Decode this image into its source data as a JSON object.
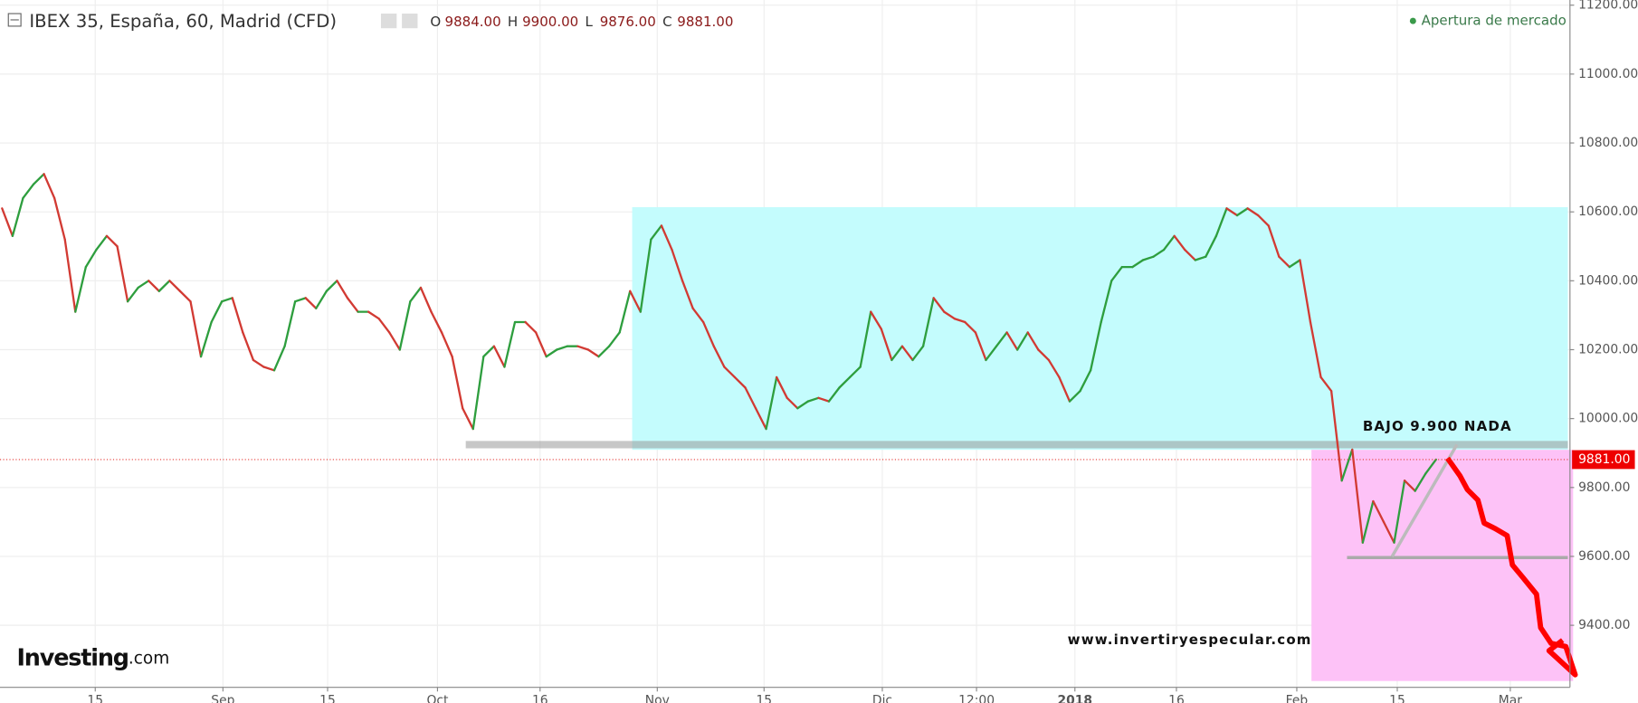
{
  "chart_data": {
    "type": "line",
    "title": "IBEX 35, España, 60, Madrid (CFD)",
    "ohlc": [
      {
        "label": "O",
        "value": "9884.00"
      },
      {
        "label": "H",
        "value": "9900.00"
      },
      {
        "label": "L",
        "value": "9876.00"
      },
      {
        "label": "C",
        "value": "9881.00"
      }
    ],
    "status": "Apertura de mercado",
    "annotations": [
      "BAJO 9.900 NADA",
      "www.invertiryespecular.com"
    ],
    "logo": {
      "main": "Investing",
      "suffix": ".com"
    },
    "last_price": {
      "value": 9881,
      "label": "9881.00"
    },
    "series": [
      {
        "name": "IBEX 35",
        "up_color": "#2e9e3e",
        "down_color": "#d23a33",
        "values": [
          10610,
          10530,
          10640,
          10680,
          10710,
          10640,
          10520,
          10310,
          10440,
          10490,
          10530,
          10500,
          10340,
          10380,
          10400,
          10370,
          10400,
          10370,
          10340,
          10180,
          10280,
          10340,
          10350,
          10250,
          10170,
          10150,
          10140,
          10210,
          10340,
          10350,
          10320,
          10370,
          10400,
          10350,
          10310,
          10310,
          10290,
          10250,
          10200,
          10340,
          10380,
          10310,
          10250,
          10180,
          10030,
          9970,
          10180,
          10210,
          10150,
          10280,
          10280,
          10250,
          10180,
          10200,
          10210,
          10210,
          10200,
          10180,
          10210,
          10250,
          10370,
          10310,
          10520,
          10560,
          10490,
          10400,
          10320,
          10280,
          10210,
          10150,
          10120,
          10090,
          10030,
          9970,
          10120,
          10060,
          10030,
          10050,
          10060,
          10050,
          10090,
          10120,
          10150,
          10310,
          10260,
          10170,
          10210,
          10170,
          10210,
          10350,
          10310,
          10290,
          10280,
          10250,
          10170,
          10210,
          10250,
          10200,
          10250,
          10200,
          10170,
          10120,
          10050,
          10080,
          10140,
          10280,
          10400,
          10440,
          10440,
          10460,
          10470,
          10490,
          10530,
          10490,
          10460,
          10470,
          10530,
          10610,
          10590,
          10610,
          10590,
          10560,
          10470,
          10440,
          10460,
          10280,
          10120,
          10080,
          9820,
          9910,
          9640,
          9760,
          9700,
          9640,
          9820,
          9790,
          9840,
          9881
        ]
      }
    ],
    "xlim": [
      0,
      150
    ],
    "xticks": [
      {
        "value": 9.1,
        "label": "15"
      },
      {
        "value": 21.3,
        "label": "Sep"
      },
      {
        "value": 31.3,
        "label": "15"
      },
      {
        "value": 41.8,
        "label": "Oct"
      },
      {
        "value": 51.6,
        "label": "16"
      },
      {
        "value": 62.8,
        "label": "Nov"
      },
      {
        "value": 73,
        "label": "15"
      },
      {
        "value": 84.3,
        "label": "Dic"
      },
      {
        "value": 93.3,
        "label": "12:00"
      },
      {
        "value": 102.7,
        "label": "2018"
      },
      {
        "value": 112.4,
        "label": "16"
      },
      {
        "value": 123.9,
        "label": "Feb"
      },
      {
        "value": 133.5,
        "label": "15"
      },
      {
        "value": 144.3,
        "label": "Mar"
      }
    ],
    "ylim": [
      9220,
      11215
    ],
    "yticks": [
      {
        "value": 9400,
        "label": "9400.00"
      },
      {
        "value": 9600,
        "label": "9600.00"
      },
      {
        "value": 9800,
        "label": "9800.00"
      },
      {
        "value": 10000,
        "label": "10000.00"
      },
      {
        "value": 10200,
        "label": "10200.00"
      },
      {
        "value": 10400,
        "label": "10400.00"
      },
      {
        "value": 10600,
        "label": "10600.00"
      },
      {
        "value": 10800,
        "label": "10800.00"
      },
      {
        "value": 11000,
        "label": "11000.00"
      },
      {
        "value": 11200,
        "label": "11200.00"
      }
    ],
    "grid": true
  }
}
